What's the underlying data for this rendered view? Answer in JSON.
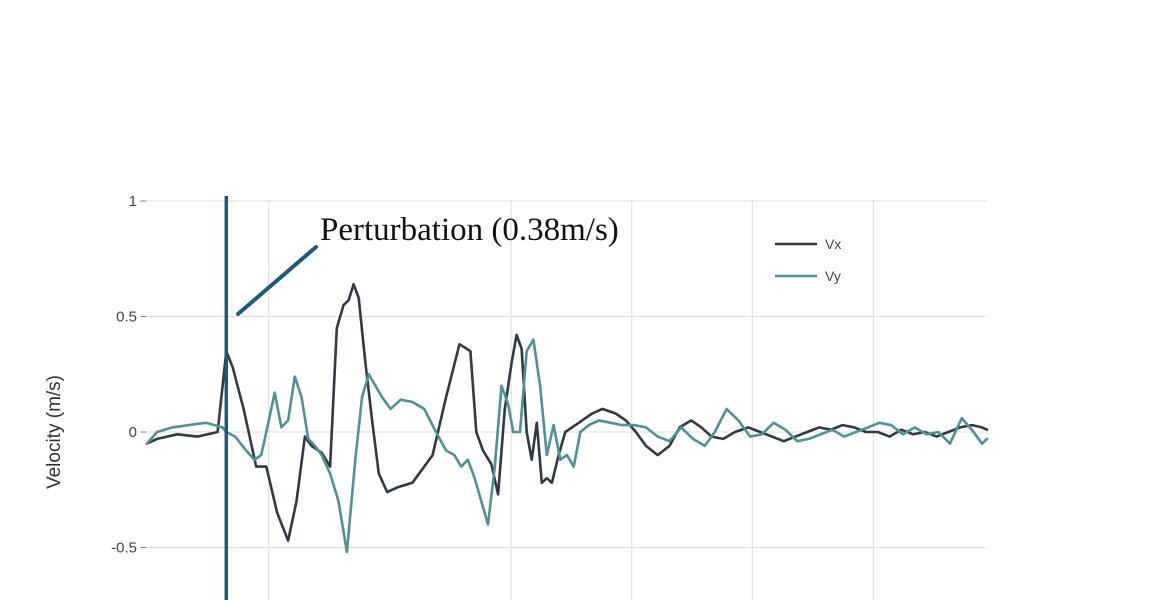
{
  "chart_data": {
    "type": "line",
    "ylabel": "Velocity (m/s)",
    "xlabel": "",
    "ylim": [
      -0.72,
      1.1
    ],
    "xlim": [
      0,
      1
    ],
    "y_ticks": [
      {
        "value": 1,
        "label": "1"
      },
      {
        "value": 0.5,
        "label": "0.5"
      },
      {
        "value": 0,
        "label": "0"
      },
      {
        "value": -0.5,
        "label": "-0.5"
      }
    ],
    "x_gridlines": [
      0.1449,
      0.4335,
      0.5771,
      0.7206,
      0.8647
    ],
    "grid": true,
    "legend_position": "top-right",
    "colors": {
      "vx": "#2f3a46",
      "vy": "#4e9196",
      "perturbation": "#1d5a7c"
    },
    "annotation": {
      "text": "Perturbation (0.38m/s)",
      "x": 0.0944,
      "y": 0.36
    },
    "perturbation_line": {
      "x": 0.0944
    },
    "series": [
      {
        "name": "Vx",
        "key": "vx",
        "x": [
          0.0,
          0.012,
          0.036,
          0.06,
          0.084,
          0.09,
          0.0944,
          0.102,
          0.115,
          0.13,
          0.142,
          0.155,
          0.168,
          0.178,
          0.188,
          0.196,
          0.208,
          0.218,
          0.226,
          0.234,
          0.24,
          0.246,
          0.252,
          0.26,
          0.268,
          0.276,
          0.286,
          0.298,
          0.316,
          0.34,
          0.356,
          0.372,
          0.385,
          0.392,
          0.4,
          0.41,
          0.418,
          0.426,
          0.434,
          0.44,
          0.446,
          0.452,
          0.458,
          0.464,
          0.47,
          0.476,
          0.482,
          0.49,
          0.498,
          0.506,
          0.514,
          0.522,
          0.53,
          0.542,
          0.558,
          0.57,
          0.582,
          0.594,
          0.608,
          0.622,
          0.634,
          0.648,
          0.66,
          0.672,
          0.686,
          0.7,
          0.716,
          0.73,
          0.744,
          0.758,
          0.772,
          0.786,
          0.8,
          0.814,
          0.828,
          0.842,
          0.856,
          0.87,
          0.884,
          0.898,
          0.912,
          0.926,
          0.94,
          0.954,
          0.968,
          0.982,
          0.994,
          1.0
        ],
        "values": [
          -0.05,
          -0.03,
          -0.01,
          -0.02,
          0.0,
          0.2,
          0.35,
          0.28,
          0.1,
          -0.15,
          -0.15,
          -0.35,
          -0.47,
          -0.3,
          -0.02,
          -0.06,
          -0.09,
          -0.15,
          0.45,
          0.55,
          0.57,
          0.64,
          0.58,
          0.3,
          0.05,
          -0.18,
          -0.26,
          -0.24,
          -0.22,
          -0.1,
          0.15,
          0.38,
          0.35,
          0.0,
          -0.08,
          -0.14,
          -0.27,
          0.1,
          0.3,
          0.42,
          0.36,
          0.0,
          -0.12,
          0.04,
          -0.22,
          -0.2,
          -0.22,
          -0.1,
          0.0,
          0.02,
          0.04,
          0.06,
          0.08,
          0.1,
          0.08,
          0.05,
          0.0,
          -0.06,
          -0.1,
          -0.06,
          0.02,
          0.05,
          0.02,
          -0.02,
          -0.03,
          0.0,
          0.02,
          0.0,
          -0.02,
          -0.04,
          -0.02,
          0.0,
          0.02,
          0.01,
          0.03,
          0.02,
          0.0,
          0.0,
          -0.02,
          0.01,
          -0.01,
          0.0,
          -0.02,
          0.0,
          0.02,
          0.03,
          0.02,
          0.01
        ]
      },
      {
        "name": "Vy",
        "key": "vy",
        "x": [
          0.0,
          0.012,
          0.03,
          0.05,
          0.07,
          0.09,
          0.0944,
          0.105,
          0.118,
          0.128,
          0.136,
          0.142,
          0.152,
          0.16,
          0.168,
          0.176,
          0.184,
          0.192,
          0.2,
          0.208,
          0.218,
          0.228,
          0.238,
          0.248,
          0.256,
          0.264,
          0.272,
          0.28,
          0.29,
          0.302,
          0.316,
          0.33,
          0.344,
          0.356,
          0.366,
          0.374,
          0.382,
          0.39,
          0.398,
          0.406,
          0.414,
          0.422,
          0.43,
          0.436,
          0.444,
          0.452,
          0.46,
          0.468,
          0.476,
          0.484,
          0.492,
          0.5,
          0.508,
          0.516,
          0.526,
          0.538,
          0.552,
          0.566,
          0.58,
          0.594,
          0.608,
          0.622,
          0.636,
          0.65,
          0.664,
          0.676,
          0.69,
          0.704,
          0.718,
          0.732,
          0.746,
          0.76,
          0.774,
          0.788,
          0.802,
          0.816,
          0.83,
          0.844,
          0.858,
          0.872,
          0.886,
          0.9,
          0.914,
          0.928,
          0.942,
          0.956,
          0.97,
          0.984,
          0.994,
          1.0
        ],
        "values": [
          -0.05,
          0.0,
          0.02,
          0.03,
          0.04,
          0.02,
          0.0,
          -0.02,
          -0.08,
          -0.12,
          -0.1,
          0.0,
          0.17,
          0.02,
          0.05,
          0.24,
          0.15,
          -0.03,
          -0.06,
          -0.1,
          -0.18,
          -0.3,
          -0.52,
          -0.12,
          0.15,
          0.25,
          0.2,
          0.15,
          0.1,
          0.14,
          0.13,
          0.1,
          0.0,
          -0.08,
          -0.1,
          -0.15,
          -0.12,
          -0.2,
          -0.3,
          -0.4,
          -0.15,
          0.2,
          0.12,
          0.0,
          0.0,
          0.35,
          0.4,
          0.2,
          -0.1,
          0.03,
          -0.12,
          -0.1,
          -0.15,
          0.0,
          0.03,
          0.05,
          0.04,
          0.03,
          0.03,
          0.02,
          -0.02,
          -0.04,
          0.02,
          -0.03,
          -0.06,
          0.0,
          0.1,
          0.05,
          -0.02,
          -0.01,
          0.04,
          0.01,
          -0.04,
          -0.03,
          -0.01,
          0.01,
          -0.02,
          0.0,
          0.02,
          0.04,
          0.03,
          -0.01,
          0.02,
          -0.01,
          0.0,
          -0.05,
          0.06,
          0.0,
          -0.05,
          -0.03
        ]
      }
    ]
  }
}
